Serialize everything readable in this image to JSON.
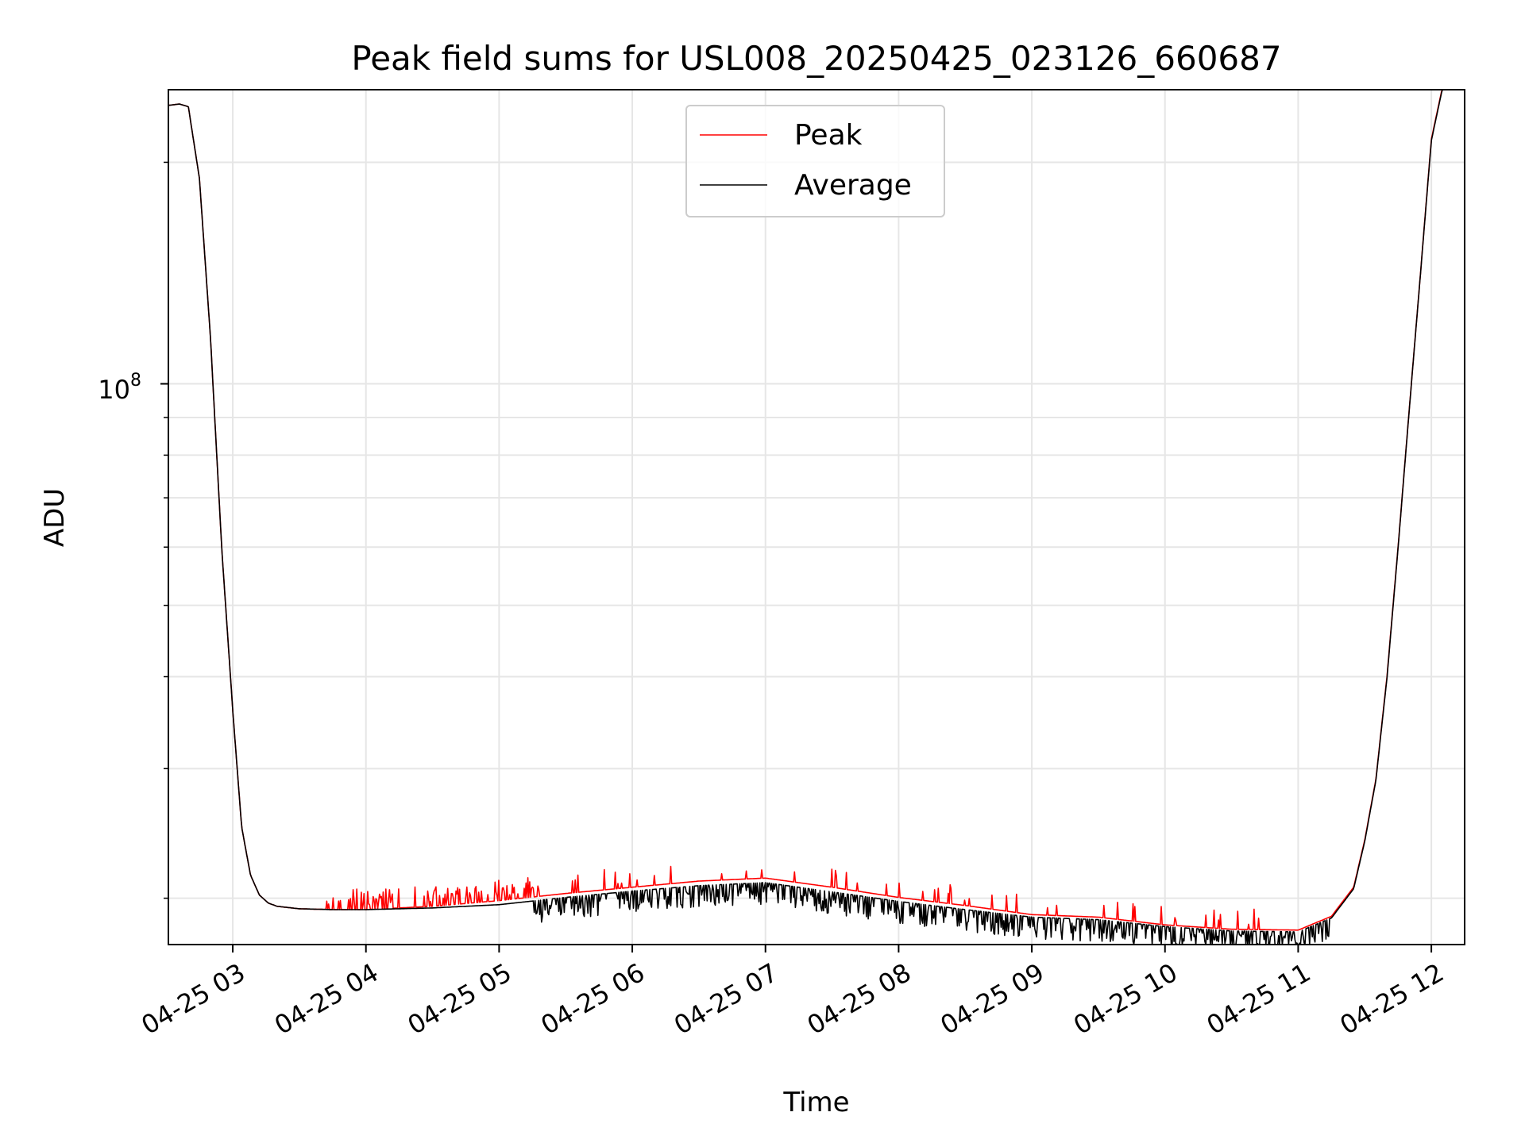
{
  "chart_data": {
    "type": "line",
    "title": "Peak field sums for USL008_20250425_023126_660687",
    "xlabel": "Time",
    "ylabel": "ADU",
    "y_scale": "log",
    "grid": true,
    "legend_position": "upper center",
    "colors": {
      "peak": "#ff0000",
      "average": "#000000",
      "grid": "#e6e6e6"
    },
    "x_ticks": [
      "04-25 03",
      "04-25 04",
      "04-25 05",
      "04-25 06",
      "04-25 07",
      "04-25 08",
      "04-25 09",
      "04-25 10",
      "04-25 11",
      "04-25 12"
    ],
    "x_tick_times": [
      "2025-04-25 03:00",
      "2025-04-25 04:00",
      "2025-04-25 05:00",
      "2025-04-25 06:00",
      "2025-04-25 07:00",
      "2025-04-25 08:00",
      "2025-04-25 09:00",
      "2025-04-25 10:00",
      "2025-04-25 11:00",
      "2025-04-25 12:00"
    ],
    "xlim": [
      "2025-04-25 02:31",
      "2025-04-25 12:15"
    ],
    "y_major_tick": {
      "value": 100000000,
      "base": "10",
      "exponent": "8"
    },
    "ylim": [
      17300000,
      251000000
    ],
    "series": [
      {
        "name": "Peak",
        "color": "#ff0000",
        "x": [
          "2025-04-25 02:31",
          "2025-04-25 02:36",
          "2025-04-25 02:40",
          "2025-04-25 02:45",
          "2025-04-25 02:50",
          "2025-04-25 02:55",
          "2025-04-25 03:00",
          "2025-04-25 03:04",
          "2025-04-25 03:08",
          "2025-04-25 03:12",
          "2025-04-25 03:16",
          "2025-04-25 03:20",
          "2025-04-25 03:30",
          "2025-04-25 03:45",
          "2025-04-25 04:00",
          "2025-04-25 04:30",
          "2025-04-25 05:00",
          "2025-04-25 05:30",
          "2025-04-25 06:00",
          "2025-04-25 06:30",
          "2025-04-25 07:00",
          "2025-04-25 07:30",
          "2025-04-25 08:00",
          "2025-04-25 08:30",
          "2025-04-25 09:00",
          "2025-04-25 09:30",
          "2025-04-25 10:00",
          "2025-04-25 10:30",
          "2025-04-25 11:00",
          "2025-04-25 11:15",
          "2025-04-25 11:25",
          "2025-04-25 11:30",
          "2025-04-25 11:35",
          "2025-04-25 11:40",
          "2025-04-25 11:45",
          "2025-04-25 11:50",
          "2025-04-25 11:55",
          "2025-04-25 12:00",
          "2025-04-25 12:05"
        ],
        "values": [
          239000000,
          240000000,
          238000000,
          190000000,
          115000000,
          60000000,
          36000000,
          25000000,
          21500000,
          20200000,
          19700000,
          19500000,
          19350000,
          19300000,
          19300000,
          19500000,
          19850000,
          20300000,
          20700000,
          21100000,
          21300000,
          20700000,
          20050000,
          19550000,
          19000000,
          18850000,
          18400000,
          18150000,
          18100000,
          18900000,
          20700000,
          24000000,
          29000000,
          40000000,
          60000000,
          92000000,
          140000000,
          215000000,
          253000000
        ]
      },
      {
        "name": "Average",
        "color": "#000000",
        "x": [
          "2025-04-25 02:31",
          "2025-04-25 02:36",
          "2025-04-25 02:40",
          "2025-04-25 02:45",
          "2025-04-25 02:50",
          "2025-04-25 02:55",
          "2025-04-25 03:00",
          "2025-04-25 03:04",
          "2025-04-25 03:08",
          "2025-04-25 03:12",
          "2025-04-25 03:16",
          "2025-04-25 03:20",
          "2025-04-25 03:30",
          "2025-04-25 03:45",
          "2025-04-25 04:00",
          "2025-04-25 04:30",
          "2025-04-25 05:00",
          "2025-04-25 05:30",
          "2025-04-25 06:00",
          "2025-04-25 06:30",
          "2025-04-25 07:00",
          "2025-04-25 07:30",
          "2025-04-25 08:00",
          "2025-04-25 08:30",
          "2025-04-25 09:00",
          "2025-04-25 09:30",
          "2025-04-25 10:00",
          "2025-04-25 10:30",
          "2025-04-25 11:00",
          "2025-04-25 11:15",
          "2025-04-25 11:25",
          "2025-04-25 11:30",
          "2025-04-25 11:35",
          "2025-04-25 11:40",
          "2025-04-25 11:45",
          "2025-04-25 11:50",
          "2025-04-25 11:55",
          "2025-04-25 12:00",
          "2025-04-25 12:05"
        ],
        "values": [
          239000000,
          240000000,
          238000000,
          190000000,
          115000000,
          60000000,
          36000000,
          25000000,
          21500000,
          20200000,
          19700000,
          19500000,
          19350000,
          19300000,
          19300000,
          19400000,
          19600000,
          20050000,
          20450000,
          20800000,
          21000000,
          20400000,
          19800000,
          19300000,
          18850000,
          18700000,
          18300000,
          18050000,
          18000000,
          18800000,
          20600000,
          23900000,
          28900000,
          39800000,
          59800000,
          91800000,
          139800000,
          214000000,
          252000000
        ]
      }
    ]
  }
}
